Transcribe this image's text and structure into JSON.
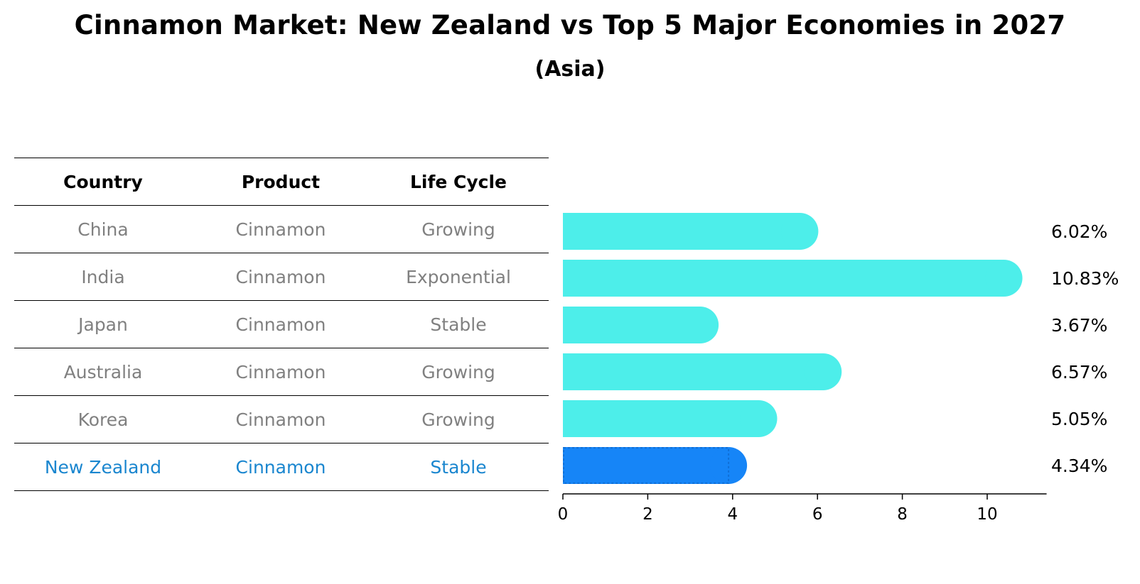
{
  "title": "Cinnamon Market: New Zealand vs Top 5 Major Economies in 2027",
  "subtitle": "(Asia)",
  "table": {
    "headers": [
      "Country",
      "Product",
      "Life Cycle"
    ],
    "rows": [
      {
        "country": "China",
        "product": "Cinnamon",
        "life_cycle": "Growing"
      },
      {
        "country": "India",
        "product": "Cinnamon",
        "life_cycle": "Exponential"
      },
      {
        "country": "Japan",
        "product": "Cinnamon",
        "life_cycle": "Stable"
      },
      {
        "country": "Australia",
        "product": "Cinnamon",
        "life_cycle": "Growing"
      },
      {
        "country": "Korea",
        "product": "Cinnamon",
        "life_cycle": "Growing"
      },
      {
        "country": "New Zealand",
        "product": "Cinnamon",
        "life_cycle": "Stable"
      }
    ]
  },
  "chart_data": {
    "type": "bar",
    "orientation": "horizontal",
    "categories": [
      "China",
      "India",
      "Japan",
      "Australia",
      "Korea",
      "New Zealand"
    ],
    "values": [
      6.02,
      10.83,
      3.67,
      6.57,
      5.05,
      4.34
    ],
    "value_labels": [
      "6.02%",
      "10.83%",
      "3.67%",
      "6.57%",
      "5.05%",
      "4.34%"
    ],
    "highlight": "New Zealand",
    "xlim": [
      0,
      11.4
    ],
    "xticks": [
      0,
      2,
      4,
      6,
      8,
      10
    ],
    "xlabel": "",
    "ylabel": "",
    "grid": false,
    "colors": {
      "default_bar": "#4deeea",
      "highlight_bar": "#1685f7",
      "highlight_text": "#1a86cf",
      "muted_text": "#808080"
    }
  }
}
